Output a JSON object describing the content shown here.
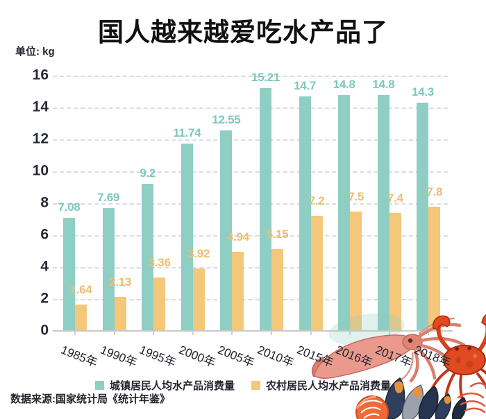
{
  "title": "国人越来越爱吃水产品了",
  "unit_label": "单位: kg",
  "source": "数据来源:国家统计局《统计年鉴》",
  "colors": {
    "urban_bar": "#8fcec3",
    "rural_bar": "#f4c77b",
    "urban_label": "#7cc8bc",
    "rural_label": "#edbd72",
    "axis_text": "#262a33",
    "gridline": "#dcdcdc",
    "background": "#ffffff"
  },
  "chart_data": {
    "type": "bar",
    "title": "国人越来越爱吃水产品了",
    "ylabel": "单位: kg",
    "ylim": [
      0,
      16
    ],
    "yticks": [
      0,
      2,
      4,
      6,
      8,
      10,
      12,
      14,
      16
    ],
    "grid": "horizontal dashed",
    "legend_position": "bottom",
    "categories": [
      "1985年",
      "1990年",
      "1995年",
      "2000年",
      "2005年",
      "2010年",
      "2015年",
      "2016年",
      "2017年",
      "2018年"
    ],
    "series": [
      {
        "name": "城镇居民人均水产品消费量",
        "color": "#8fcec3",
        "label_color": "#7cc8bc",
        "values": [
          7.08,
          7.69,
          9.2,
          11.74,
          12.55,
          15.21,
          14.7,
          14.8,
          14.8,
          14.3
        ]
      },
      {
        "name": "农村居民人均水产品消费量",
        "color": "#f4c77b",
        "label_color": "#edbd72",
        "values": [
          1.64,
          2.13,
          3.36,
          3.92,
          4.94,
          5.15,
          7.2,
          7.5,
          7.4,
          7.8
        ]
      }
    ]
  },
  "decorations": [
    "squid-illustration",
    "crab-illustration",
    "mussels-illustration",
    "salmon-slice-illustration",
    "shrimp-illustration"
  ]
}
